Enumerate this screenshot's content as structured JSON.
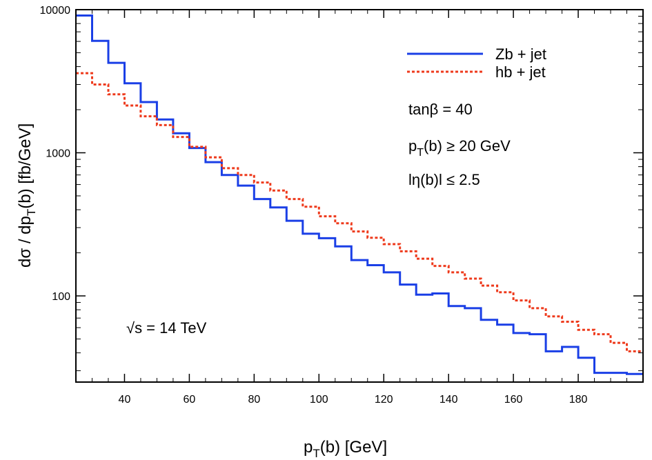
{
  "chart_data": {
    "type": "line",
    "style": "step-histogram",
    "y_scale": "log",
    "xlim": [
      25,
      200
    ],
    "ylim": [
      25,
      10000
    ],
    "x_ticks": [
      40,
      60,
      80,
      100,
      120,
      140,
      160,
      180
    ],
    "x_tick_labels": [
      "40",
      "60",
      "80",
      "100",
      "120",
      "140",
      "160",
      "180"
    ],
    "y_ticks": [
      100,
      1000,
      10000
    ],
    "y_tick_labels": [
      "100",
      "1000",
      "10000"
    ],
    "xlabel": {
      "main": "p",
      "sub": "T",
      "rest": "(b)   [GeV]"
    },
    "ylabel": {
      "pre": "dσ / dp",
      "sub": "T",
      "rest": "(b)   [fb/GeV]"
    },
    "legend_position": "top-right",
    "bin_edges": [
      25,
      30,
      35,
      40,
      45,
      50,
      55,
      60,
      65,
      70,
      75,
      80,
      85,
      90,
      95,
      100,
      105,
      110,
      115,
      120,
      125,
      130,
      135,
      140,
      145,
      150,
      155,
      160,
      165,
      170,
      175,
      180,
      185,
      190,
      195,
      200
    ],
    "series": [
      {
        "name": "Zb + jet",
        "style": "solid",
        "color": "#1a3fe6",
        "values": [
          9100,
          6050,
          4250,
          3060,
          2260,
          1710,
          1370,
          1080,
          860,
          700,
          590,
          475,
          415,
          335,
          272,
          253,
          222,
          178,
          164,
          146,
          120,
          102,
          104,
          85,
          82,
          68,
          63,
          55,
          54,
          41,
          44,
          37,
          29,
          29,
          28.5
        ]
      },
      {
        "name": "hb + jet",
        "style": "dotted",
        "color": "#ee3a1c",
        "values": [
          3600,
          3000,
          2560,
          2140,
          1800,
          1560,
          1290,
          1100,
          930,
          780,
          700,
          620,
          545,
          475,
          420,
          360,
          322,
          282,
          255,
          230,
          205,
          182,
          162,
          146,
          132,
          118,
          106,
          93,
          82,
          72,
          66,
          58,
          54,
          47,
          41
        ]
      }
    ],
    "annotations": {
      "tanbeta": "tanβ = 40",
      "pt_cut": {
        "main": "p",
        "sub": "T",
        "rest": "(b) ≥ 20 GeV"
      },
      "eta_cut": "lη(b)l ≤ 2.5",
      "energy": "√s = 14 TeV"
    }
  }
}
